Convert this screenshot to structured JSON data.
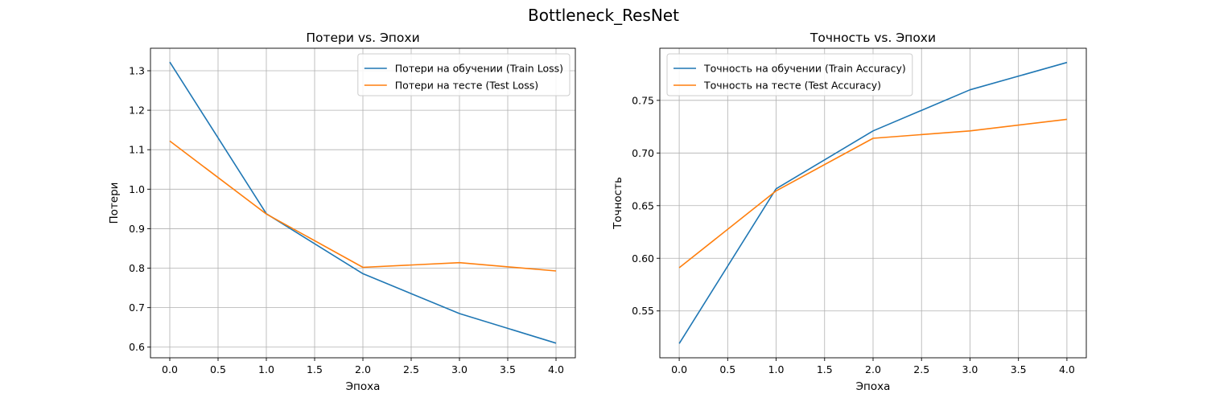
{
  "figure": {
    "suptitle": "Bottleneck_ResNet"
  },
  "chart_data": [
    {
      "type": "line",
      "title": "Потери vs. Эпохи",
      "xlabel": "Эпоха",
      "ylabel": "Потери",
      "x": [
        0,
        1,
        2,
        3,
        4
      ],
      "xlim": [
        -0.2,
        4.2
      ],
      "ylim": [
        0.573,
        1.357
      ],
      "xticks": [
        0,
        0.5,
        1,
        1.5,
        2,
        2.5,
        3,
        3.5,
        4
      ],
      "xtick_labels": [
        "0.0",
        "0.5",
        "1.0",
        "1.5",
        "2.0",
        "2.5",
        "3.0",
        "3.5",
        "4.0"
      ],
      "yticks": [
        0.6,
        0.7,
        0.8,
        0.9,
        1.0,
        1.1,
        1.2,
        1.3
      ],
      "ytick_labels": [
        "0.6",
        "0.7",
        "0.8",
        "0.9",
        "1.0",
        "1.1",
        "1.2",
        "1.3"
      ],
      "grid": true,
      "legend_position": "top-right",
      "series": [
        {
          "name": "Потери на обучении (Train Loss)",
          "color": "#1f77b4",
          "values": [
            1.322,
            0.938,
            0.786,
            0.685,
            0.61
          ]
        },
        {
          "name": "Потери на тесте (Test Loss)",
          "color": "#ff7f0e",
          "values": [
            1.122,
            0.937,
            0.802,
            0.814,
            0.793
          ]
        }
      ]
    },
    {
      "type": "line",
      "title": "Точность vs. Эпохи",
      "xlabel": "Эпоха",
      "ylabel": "Точность",
      "x": [
        0,
        1,
        2,
        3,
        4
      ],
      "xlim": [
        -0.2,
        4.2
      ],
      "ylim": [
        0.5055,
        0.7995
      ],
      "xticks": [
        0,
        0.5,
        1,
        1.5,
        2,
        2.5,
        3,
        3.5,
        4
      ],
      "xtick_labels": [
        "0.0",
        "0.5",
        "1.0",
        "1.5",
        "2.0",
        "2.5",
        "3.0",
        "3.5",
        "4.0"
      ],
      "yticks": [
        0.55,
        0.6,
        0.65,
        0.7,
        0.75
      ],
      "ytick_labels": [
        "0.55",
        "0.60",
        "0.65",
        "0.70",
        "0.75"
      ],
      "grid": true,
      "legend_position": "top-left",
      "series": [
        {
          "name": "Точность на обучении (Train Accuracy)",
          "color": "#1f77b4",
          "values": [
            0.519,
            0.666,
            0.721,
            0.76,
            0.786
          ]
        },
        {
          "name": "Точность на тесте (Test Accuracy)",
          "color": "#ff7f0e",
          "values": [
            0.591,
            0.664,
            0.714,
            0.721,
            0.732
          ]
        }
      ]
    }
  ]
}
